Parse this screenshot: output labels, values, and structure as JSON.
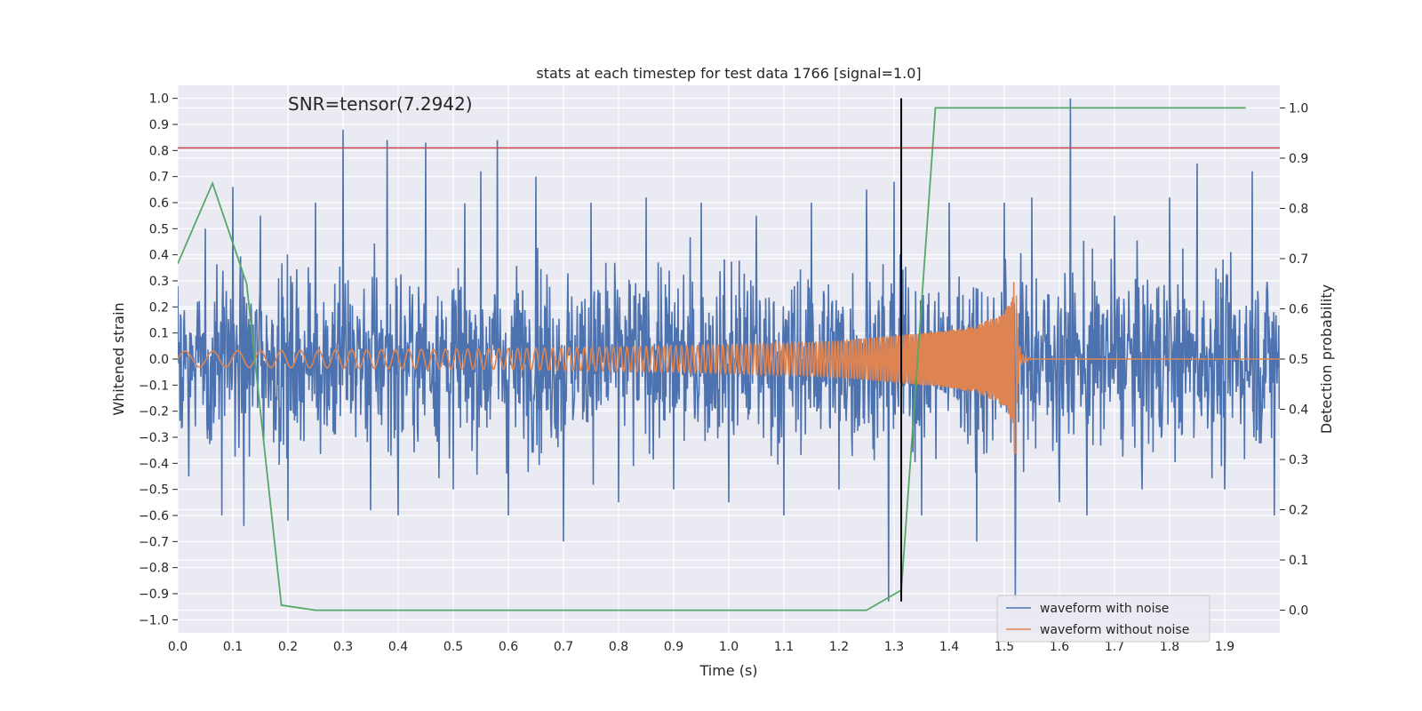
{
  "chart_data": {
    "type": "line",
    "title": "stats at each timestep for test data 1766 [signal=1.0]",
    "annotation": "SNR=tensor(7.2942)",
    "xlabel": "Time (s)",
    "ylabel": "Whitened strain",
    "y2label": "Detection probability",
    "xlim": [
      0.0,
      2.0
    ],
    "ylim": [
      -1.05,
      1.05
    ],
    "y2lim": [
      -0.045,
      1.045
    ],
    "x_ticks": [
      "0.0",
      "0.1",
      "0.2",
      "0.3",
      "0.4",
      "0.5",
      "0.6",
      "0.7",
      "0.8",
      "0.9",
      "1.0",
      "1.1",
      "1.2",
      "1.3",
      "1.4",
      "1.5",
      "1.6",
      "1.7",
      "1.8",
      "1.9"
    ],
    "y_ticks": [
      "1.0",
      "0.9",
      "0.8",
      "0.7",
      "0.6",
      "0.5",
      "0.4",
      "0.3",
      "0.2",
      "0.1",
      "0.0",
      "−0.1",
      "−0.2",
      "−0.3",
      "−0.4",
      "−0.5",
      "−0.6",
      "−0.7",
      "−0.8",
      "−0.9",
      "−1.0"
    ],
    "y2_ticks": [
      "1.0",
      "0.9",
      "0.8",
      "0.7",
      "0.6",
      "0.5",
      "0.4",
      "0.3",
      "0.2",
      "0.1",
      "0.0"
    ],
    "grid": true,
    "legend_position": "lower-right",
    "series": [
      {
        "name": "waveform with noise",
        "color": "#4c72b0",
        "axis": "left",
        "approx_x": [
          0.0,
          0.02,
          0.05,
          0.08,
          0.1,
          0.12,
          0.15,
          0.2,
          0.25,
          0.3,
          0.35,
          0.38,
          0.4,
          0.45,
          0.5,
          0.55,
          0.58,
          0.6,
          0.65,
          0.7,
          0.75,
          0.8,
          0.85,
          0.9,
          0.95,
          1.0,
          1.05,
          1.1,
          1.15,
          1.2,
          1.25,
          1.29,
          1.3,
          1.35,
          1.4,
          1.45,
          1.5,
          1.52,
          1.55,
          1.6,
          1.62,
          1.65,
          1.7,
          1.75,
          1.8,
          1.85,
          1.9,
          1.95,
          1.99
        ],
        "approx_y": [
          0.28,
          -0.45,
          0.5,
          -0.6,
          0.66,
          -0.64,
          0.55,
          -0.62,
          0.6,
          0.88,
          -0.58,
          0.84,
          -0.6,
          0.83,
          -0.5,
          0.72,
          0.84,
          -0.6,
          0.7,
          -0.7,
          0.6,
          -0.55,
          0.62,
          -0.5,
          0.6,
          -0.55,
          0.55,
          -0.6,
          0.6,
          -0.5,
          0.65,
          -0.93,
          0.68,
          -0.6,
          0.6,
          -0.7,
          0.6,
          -0.92,
          0.62,
          -0.55,
          1.0,
          -0.6,
          0.55,
          -0.5,
          0.62,
          0.75,
          -0.5,
          0.72,
          -0.6
        ]
      },
      {
        "name": "waveform without noise",
        "color": "#dd8452",
        "axis": "left",
        "approx_x": [
          0.0,
          0.3,
          0.6,
          0.9,
          1.1,
          1.2,
          1.3,
          1.4,
          1.45,
          1.5,
          1.515,
          1.52,
          1.525,
          1.53,
          1.55,
          2.0
        ],
        "approx_y": [
          0.03,
          0.035,
          0.04,
          0.05,
          0.06,
          0.07,
          0.09,
          0.11,
          0.13,
          0.18,
          0.24,
          -0.36,
          0.1,
          -0.02,
          0.0,
          0.0
        ]
      },
      {
        "name": "",
        "color": "#55a868",
        "axis": "right",
        "x": [
          0.0,
          0.063,
          0.125,
          0.188,
          0.25,
          0.5,
          0.75,
          1.0,
          1.25,
          1.313,
          1.375,
          1.938
        ],
        "y": [
          0.69,
          0.85,
          0.65,
          0.01,
          0.0,
          0.0,
          0.0,
          0.0,
          0.0,
          0.04,
          1.0,
          1.0
        ]
      }
    ],
    "hlines": [
      {
        "y": 0.81,
        "color": "#c44e52"
      }
    ],
    "vlines": [
      {
        "x": 1.313,
        "y_from": -0.93,
        "y_to": 1.0,
        "color": "#000000"
      }
    ]
  }
}
